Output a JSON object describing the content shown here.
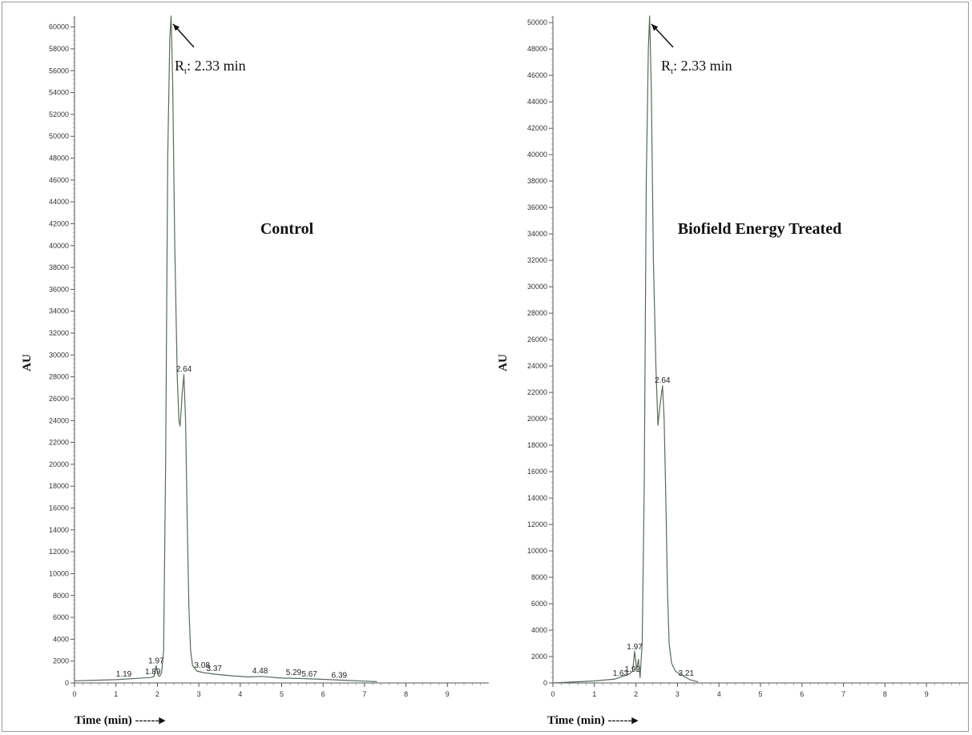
{
  "chart_data": [
    {
      "type": "line",
      "title": "Control",
      "xlabel": "Time (min)",
      "xlabel_arrow": "------▸",
      "ylabel": "AU",
      "xlim": [
        0,
        10
      ],
      "ylim": [
        0,
        61000
      ],
      "x_ticks": [
        "0",
        "1",
        "2",
        "3",
        "4",
        "5",
        "6",
        "7",
        "8",
        "9"
      ],
      "y_ticks": [
        "0",
        "2000",
        "4000",
        "6000",
        "8000",
        "10000",
        "12000",
        "14000",
        "16000",
        "18000",
        "20000",
        "22000",
        "24000",
        "26000",
        "28000",
        "30000",
        "32000",
        "34000",
        "36000",
        "38000",
        "40000",
        "42000",
        "44000",
        "46000",
        "48000",
        "50000",
        "52000",
        "54000",
        "56000",
        "58000",
        "60000"
      ],
      "annotation": {
        "prefix": "R",
        "sub": "t",
        "text": ": 2.33 min"
      },
      "peak_labels": [
        {
          "text": "1.19",
          "x": 1.19,
          "y": 300
        },
        {
          "text": "1.89",
          "x": 1.89,
          "y": 500
        },
        {
          "text": "1.97",
          "x": 1.97,
          "y": 1500
        },
        {
          "text": "2.64",
          "x": 2.64,
          "y": 28200
        },
        {
          "text": "3.08",
          "x": 3.08,
          "y": 1100
        },
        {
          "text": "3.37",
          "x": 3.37,
          "y": 800
        },
        {
          "text": "4.48",
          "x": 4.48,
          "y": 600
        },
        {
          "text": "5.29",
          "x": 5.29,
          "y": 450
        },
        {
          "text": "5.67",
          "x": 5.67,
          "y": 300
        },
        {
          "text": "6.39",
          "x": 6.39,
          "y": 180
        }
      ],
      "trace": {
        "x": [
          0.0,
          0.5,
          1.0,
          1.5,
          1.85,
          1.92,
          1.97,
          2.02,
          2.05,
          2.1,
          2.15,
          2.2,
          2.25,
          2.3,
          2.33,
          2.37,
          2.42,
          2.48,
          2.52,
          2.55,
          2.6,
          2.64,
          2.68,
          2.72,
          2.76,
          2.8,
          2.85,
          2.95,
          3.1,
          3.4,
          3.8,
          4.2,
          4.5,
          5.0,
          5.5,
          6.0,
          6.5,
          7.0,
          7.3
        ],
        "y": [
          200,
          250,
          300,
          420,
          500,
          600,
          1600,
          700,
          600,
          900,
          3000,
          20000,
          48000,
          59000,
          61000,
          55000,
          40000,
          28000,
          24000,
          23500,
          26500,
          28200,
          24000,
          15000,
          7000,
          3000,
          1600,
          1100,
          950,
          800,
          650,
          550,
          600,
          450,
          400,
          330,
          250,
          170,
          120
        ]
      }
    },
    {
      "type": "line",
      "title": "Biofield Energy Treated",
      "xlabel": "Time (min)",
      "xlabel_arrow": "------▸",
      "ylabel": "AU",
      "xlim": [
        0,
        10
      ],
      "ylim": [
        0,
        50500
      ],
      "x_ticks": [
        "0",
        "1",
        "2",
        "3",
        "4",
        "5",
        "6",
        "7",
        "8",
        "9"
      ],
      "y_ticks": [
        "0",
        "2000",
        "4000",
        "6000",
        "8000",
        "10000",
        "12000",
        "14000",
        "16000",
        "18000",
        "20000",
        "22000",
        "24000",
        "26000",
        "28000",
        "30000",
        "32000",
        "34000",
        "36000",
        "38000",
        "40000",
        "42000",
        "44000",
        "46000",
        "48000",
        "50000"
      ],
      "annotation": {
        "prefix": "R",
        "sub": "t",
        "text": ": 2.33 min"
      },
      "peak_labels": [
        {
          "text": "1.63",
          "x": 1.63,
          "y": 300
        },
        {
          "text": "1.92",
          "x": 1.92,
          "y": 600
        },
        {
          "text": "1.97",
          "x": 1.97,
          "y": 2300
        },
        {
          "text": "2.64",
          "x": 2.64,
          "y": 22500
        },
        {
          "text": "3.21",
          "x": 3.21,
          "y": 300
        }
      ],
      "trace": {
        "x": [
          0.0,
          1.0,
          1.5,
          1.85,
          1.92,
          1.97,
          2.02,
          2.06,
          2.1,
          2.15,
          2.2,
          2.25,
          2.3,
          2.33,
          2.37,
          2.42,
          2.48,
          2.53,
          2.58,
          2.64,
          2.68,
          2.72,
          2.76,
          2.8,
          2.86,
          2.95,
          3.1,
          3.3,
          3.5
        ],
        "y": [
          0,
          150,
          300,
          700,
          900,
          2400,
          1000,
          1800,
          400,
          3000,
          15000,
          38000,
          48000,
          50500,
          45000,
          32000,
          24000,
          19500,
          21000,
          22500,
          20000,
          14000,
          7000,
          3000,
          1500,
          900,
          600,
          250,
          80
        ]
      }
    }
  ]
}
